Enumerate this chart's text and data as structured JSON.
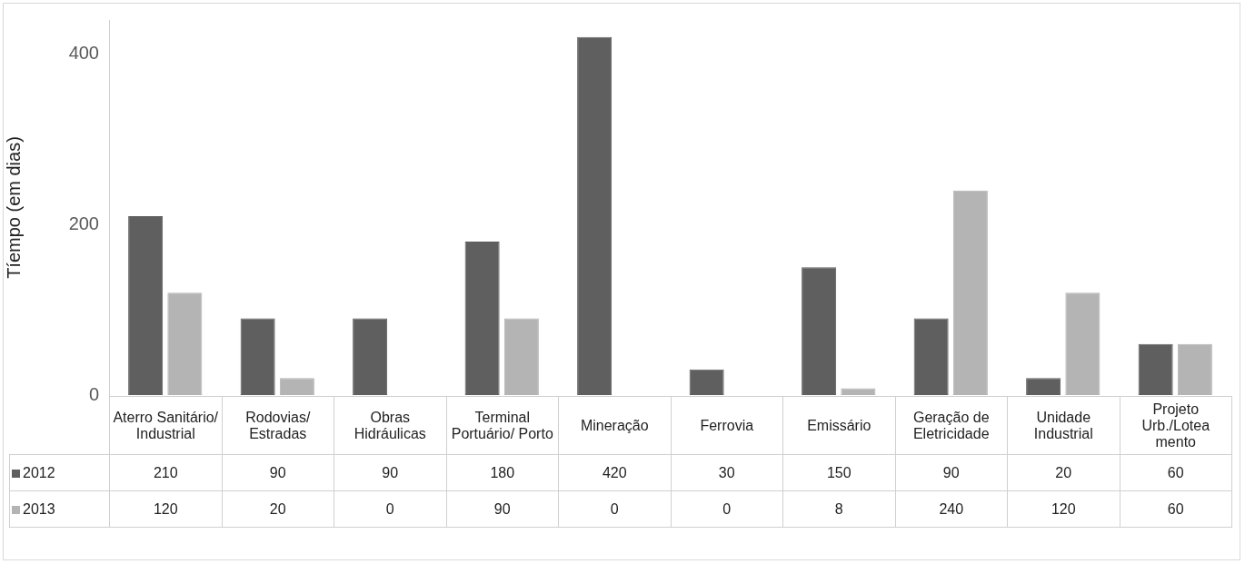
{
  "chart_data": {
    "type": "bar",
    "ylabel": "Tíempo (em dias)",
    "categories": [
      "Aterro Sanitário/ Industrial",
      "Rodovias/ Estradas",
      "Obras Hidráulicas",
      "Terminal Portuário/ Porto",
      "Mineração",
      "Ferrovia",
      "Emissário",
      "Geração de Eletricidade",
      "Unidade Industrial",
      "Projeto Urb./Lotea mento"
    ],
    "series": [
      {
        "name": "2012",
        "color": "#5f5f5f",
        "values": [
          210,
          90,
          90,
          180,
          420,
          30,
          150,
          90,
          20,
          60
        ]
      },
      {
        "name": "2013",
        "color": "#b4b4b4",
        "values": [
          120,
          20,
          0,
          90,
          0,
          0,
          8,
          240,
          120,
          60
        ]
      }
    ],
    "ylim": [
      0,
      440
    ],
    "yticks": [
      0,
      200,
      400
    ],
    "grid": false,
    "legend": "bottom left",
    "data_labels": true
  }
}
